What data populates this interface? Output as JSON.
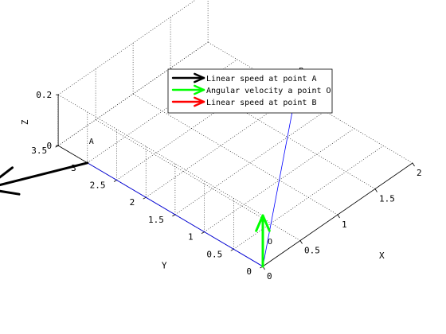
{
  "chart_data": {
    "type": "3d-quiver",
    "view": "3d",
    "grid": true,
    "legend_position": "top-center",
    "xlabel": "X",
    "ylabel": "Y",
    "zlabel": "Z",
    "xlim": [
      0,
      2
    ],
    "ylim": [
      0,
      3.5
    ],
    "zlim": [
      0,
      0.2
    ],
    "x_ticks": [
      "0",
      "0.5",
      "1",
      "1.5",
      "2"
    ],
    "y_ticks": [
      "0",
      "0.5",
      "1",
      "1.5",
      "2",
      "2.5",
      "3",
      "3.5"
    ],
    "z_ticks": [
      "0",
      "0.2"
    ],
    "points": [
      {
        "label": "O",
        "x": 0,
        "y": 0,
        "z": 0
      },
      {
        "label": "A",
        "x": 0,
        "y": 3,
        "z": 0
      },
      {
        "label": "B",
        "x": 2,
        "y": 2,
        "z": 0
      }
    ],
    "segments": [
      {
        "from": "O",
        "to": "A",
        "color": "#0000ff"
      },
      {
        "from": "O",
        "to": "B",
        "color": "#0000ff"
      }
    ],
    "series": [
      {
        "name": "Linear speed at point A",
        "color": "#000000",
        "origin": [
          0,
          3,
          0
        ],
        "vector": [
          -0.9,
          0.6,
          0
        ]
      },
      {
        "name": "Angular velocity a point O",
        "color": "#00ff00",
        "origin": [
          0,
          0,
          0
        ],
        "vector": [
          0,
          0,
          0.2
        ]
      },
      {
        "name": "Linear speed at point B",
        "color": "#ff0000",
        "origin": [
          2,
          2,
          0
        ],
        "vector": [
          -0.6,
          0.6,
          0
        ]
      }
    ]
  }
}
